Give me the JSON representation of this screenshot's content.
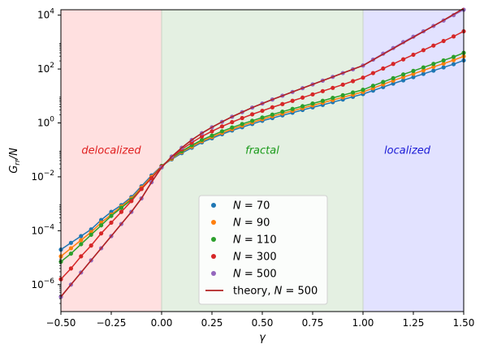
{
  "chart_data": {
    "type": "scatter",
    "xlabel": "γ",
    "ylabel": "G_rr/N",
    "xlim": [
      -0.5,
      1.5
    ],
    "ylim_log10": [
      -7,
      4.2
    ],
    "y_scale": "log",
    "x_ticks": [
      -0.5,
      -0.25,
      0.0,
      0.25,
      0.5,
      0.75,
      1.0,
      1.25,
      1.5
    ],
    "x_tick_labels": [
      "−0.50",
      "−0.25",
      "0.00",
      "0.25",
      "0.50",
      "0.75",
      "1.00",
      "1.25",
      "1.50"
    ],
    "y_ticks_log10": [
      -6,
      -4,
      -2,
      0,
      2,
      4
    ],
    "y_tick_labels": [
      {
        "base": "10",
        "exp": "−6"
      },
      {
        "base": "10",
        "exp": "−4"
      },
      {
        "base": "10",
        "exp": "−2"
      },
      {
        "base": "10",
        "exp": "0"
      },
      {
        "base": "10",
        "exp": "2"
      },
      {
        "base": "10",
        "exp": "4"
      }
    ],
    "grid": false,
    "legend_position": "lower-center",
    "regions": [
      {
        "label": "delocalized",
        "x_range": [
          -0.5,
          0.0
        ],
        "fill": "#ffe0e0",
        "text_color": "#e02020",
        "label_x": -0.25,
        "label_y_log10": -1.0
      },
      {
        "label": "fractal",
        "x_range": [
          0.0,
          1.0
        ],
        "fill": "#e4f0e2",
        "text_color": "#1a9a1a",
        "label_x": 0.5,
        "label_y_log10": -1.0
      },
      {
        "label": "localized",
        "x_range": [
          1.0,
          1.5
        ],
        "fill": "#e2e2ff",
        "text_color": "#1a1ad6",
        "label_x": 1.22,
        "label_y_log10": -1.0
      }
    ],
    "series": [
      {
        "name": "N = 70",
        "N": "70",
        "color": "#1f77b4",
        "marker": "dot",
        "x": [
          -0.5,
          -0.45,
          -0.4,
          -0.35,
          -0.3,
          -0.25,
          -0.2,
          -0.15,
          -0.1,
          -0.05,
          0.0,
          0.05,
          0.1,
          0.15,
          0.2,
          0.25,
          0.3,
          0.35,
          0.4,
          0.45,
          0.5,
          0.55,
          0.6,
          0.65,
          0.7,
          0.75,
          0.8,
          0.85,
          0.9,
          0.95,
          1.0,
          1.05,
          1.1,
          1.15,
          1.2,
          1.25,
          1.3,
          1.35,
          1.4,
          1.45,
          1.5
        ],
        "log10_y": [
          -4.7,
          -4.45,
          -4.2,
          -3.95,
          -3.6,
          -3.3,
          -3.05,
          -2.75,
          -2.35,
          -1.95,
          -1.6,
          -1.35,
          -1.12,
          -0.92,
          -0.72,
          -0.57,
          -0.42,
          -0.28,
          -0.16,
          -0.04,
          0.08,
          0.18,
          0.28,
          0.38,
          0.48,
          0.58,
          0.67,
          0.77,
          0.87,
          0.97,
          1.07,
          1.2,
          1.33,
          1.46,
          1.58,
          1.7,
          1.82,
          1.94,
          2.06,
          2.18,
          2.32
        ]
      },
      {
        "name": "N = 90",
        "N": "90",
        "color": "#ff7f0e",
        "marker": "dot",
        "x": [
          -0.5,
          -0.45,
          -0.4,
          -0.35,
          -0.3,
          -0.25,
          -0.2,
          -0.15,
          -0.1,
          -0.05,
          0.0,
          0.05,
          0.1,
          0.15,
          0.2,
          0.25,
          0.3,
          0.35,
          0.4,
          0.45,
          0.5,
          0.55,
          0.6,
          0.65,
          0.7,
          0.75,
          0.8,
          0.85,
          0.9,
          0.95,
          1.0,
          1.05,
          1.1,
          1.15,
          1.2,
          1.25,
          1.3,
          1.35,
          1.4,
          1.45,
          1.5
        ],
        "log10_y": [
          -4.95,
          -4.65,
          -4.35,
          -4.05,
          -3.7,
          -3.4,
          -3.1,
          -2.8,
          -2.4,
          -2.0,
          -1.6,
          -1.33,
          -1.08,
          -0.88,
          -0.68,
          -0.52,
          -0.37,
          -0.23,
          -0.1,
          0.02,
          0.14,
          0.25,
          0.35,
          0.45,
          0.55,
          0.65,
          0.75,
          0.85,
          0.95,
          1.05,
          1.15,
          1.29,
          1.43,
          1.57,
          1.7,
          1.82,
          1.95,
          2.08,
          2.2,
          2.33,
          2.47
        ]
      },
      {
        "name": "N = 110",
        "N": "110",
        "color": "#2ca02c",
        "marker": "dot",
        "x": [
          -0.5,
          -0.45,
          -0.4,
          -0.35,
          -0.3,
          -0.25,
          -0.2,
          -0.15,
          -0.1,
          -0.05,
          0.0,
          0.05,
          0.1,
          0.15,
          0.2,
          0.25,
          0.3,
          0.35,
          0.4,
          0.45,
          0.5,
          0.55,
          0.6,
          0.65,
          0.7,
          0.75,
          0.8,
          0.85,
          0.9,
          0.95,
          1.0,
          1.05,
          1.1,
          1.15,
          1.2,
          1.25,
          1.3,
          1.35,
          1.4,
          1.45,
          1.5
        ],
        "log10_y": [
          -5.15,
          -4.85,
          -4.5,
          -4.15,
          -3.8,
          -3.45,
          -3.15,
          -2.85,
          -2.45,
          -2.05,
          -1.6,
          -1.3,
          -1.05,
          -0.83,
          -0.63,
          -0.47,
          -0.31,
          -0.17,
          -0.04,
          0.08,
          0.2,
          0.31,
          0.42,
          0.52,
          0.62,
          0.72,
          0.82,
          0.93,
          1.03,
          1.13,
          1.23,
          1.38,
          1.52,
          1.66,
          1.8,
          1.93,
          2.06,
          2.19,
          2.32,
          2.45,
          2.6
        ]
      },
      {
        "name": "N = 300",
        "N": "300",
        "color": "#d62728",
        "marker": "dot",
        "x": [
          -0.5,
          -0.45,
          -0.4,
          -0.35,
          -0.3,
          -0.25,
          -0.2,
          -0.15,
          -0.1,
          -0.05,
          0.0,
          0.05,
          0.1,
          0.15,
          0.2,
          0.25,
          0.3,
          0.35,
          0.4,
          0.45,
          0.5,
          0.55,
          0.6,
          0.65,
          0.7,
          0.75,
          0.8,
          0.85,
          0.9,
          0.95,
          1.0,
          1.05,
          1.1,
          1.15,
          1.2,
          1.25,
          1.3,
          1.35,
          1.4,
          1.45,
          1.5
        ],
        "log10_y": [
          -5.8,
          -5.4,
          -4.95,
          -4.55,
          -4.1,
          -3.7,
          -3.3,
          -2.9,
          -2.45,
          -2.05,
          -1.62,
          -1.28,
          -0.98,
          -0.73,
          -0.5,
          -0.31,
          -0.13,
          0.03,
          0.18,
          0.32,
          0.45,
          0.58,
          0.7,
          0.82,
          0.94,
          1.06,
          1.18,
          1.3,
          1.42,
          1.55,
          1.68,
          1.85,
          2.02,
          2.19,
          2.36,
          2.53,
          2.7,
          2.87,
          3.04,
          3.21,
          3.4
        ]
      },
      {
        "name": "N = 500",
        "N": "500",
        "color": "#9467bd",
        "marker": "dot",
        "x": [
          -0.5,
          -0.45,
          -0.4,
          -0.35,
          -0.3,
          -0.25,
          -0.2,
          -0.15,
          -0.1,
          -0.05,
          0.0,
          0.05,
          0.1,
          0.15,
          0.2,
          0.25,
          0.3,
          0.35,
          0.4,
          0.45,
          0.5,
          0.55,
          0.6,
          0.65,
          0.7,
          0.75,
          0.8,
          0.85,
          0.9,
          0.95,
          1.0,
          1.05,
          1.1,
          1.15,
          1.2,
          1.25,
          1.3,
          1.35,
          1.4,
          1.45,
          1.5
        ],
        "log10_y": [
          -6.45,
          -6.0,
          -5.55,
          -5.1,
          -4.65,
          -4.2,
          -3.75,
          -3.3,
          -2.8,
          -2.2,
          -1.65,
          -1.25,
          -0.92,
          -0.63,
          -0.38,
          -0.16,
          0.04,
          0.23,
          0.4,
          0.57,
          0.72,
          0.87,
          1.01,
          1.15,
          1.29,
          1.43,
          1.57,
          1.71,
          1.85,
          1.99,
          2.13,
          2.35,
          2.57,
          2.78,
          3.0,
          3.2,
          3.4,
          3.6,
          3.8,
          4.0,
          4.2
        ]
      }
    ],
    "theory_curves": [
      {
        "name": "theory, N = 500",
        "color": "#b22222",
        "x": [
          -0.5,
          -0.45,
          -0.4,
          -0.35,
          -0.3,
          -0.25,
          -0.2,
          -0.15,
          -0.1,
          -0.05,
          0.0,
          0.05,
          0.1,
          0.15,
          0.2,
          0.25,
          0.3,
          0.35,
          0.4,
          0.45,
          0.5,
          0.55,
          0.6,
          0.65,
          0.7,
          0.75,
          0.8,
          0.85,
          0.9,
          0.95,
          1.0
        ],
        "log10_y": [
          -6.45,
          -6.0,
          -5.55,
          -5.1,
          -4.65,
          -4.2,
          -3.75,
          -3.3,
          -2.8,
          -2.2,
          -1.65,
          -1.25,
          -0.92,
          -0.63,
          -0.38,
          -0.16,
          0.04,
          0.23,
          0.4,
          0.57,
          0.72,
          0.87,
          1.01,
          1.15,
          1.29,
          1.43,
          1.57,
          1.71,
          1.85,
          1.99,
          2.13
        ]
      },
      {
        "name": "theory, N = 500",
        "color": "#b22222",
        "x": [
          1.0,
          1.1,
          1.2,
          1.3,
          1.4,
          1.5
        ],
        "log10_y": [
          2.13,
          2.55,
          2.97,
          3.39,
          3.81,
          4.25
        ]
      }
    ],
    "legend": [
      {
        "kind": "dot",
        "math": "N",
        "op": " = ",
        "value": "70",
        "color": "#1f77b4"
      },
      {
        "kind": "dot",
        "math": "N",
        "op": " = ",
        "value": "90",
        "color": "#ff7f0e"
      },
      {
        "kind": "dot",
        "math": "N",
        "op": " = ",
        "value": "110",
        "color": "#2ca02c"
      },
      {
        "kind": "dot",
        "math": "N",
        "op": " = ",
        "value": "300",
        "color": "#d62728"
      },
      {
        "kind": "dot",
        "math": "N",
        "op": " = ",
        "value": "500",
        "color": "#9467bd"
      },
      {
        "kind": "line",
        "prefix": "theory, ",
        "math": "N",
        "op": " = ",
        "value": "500",
        "color": "#b22222"
      }
    ]
  }
}
